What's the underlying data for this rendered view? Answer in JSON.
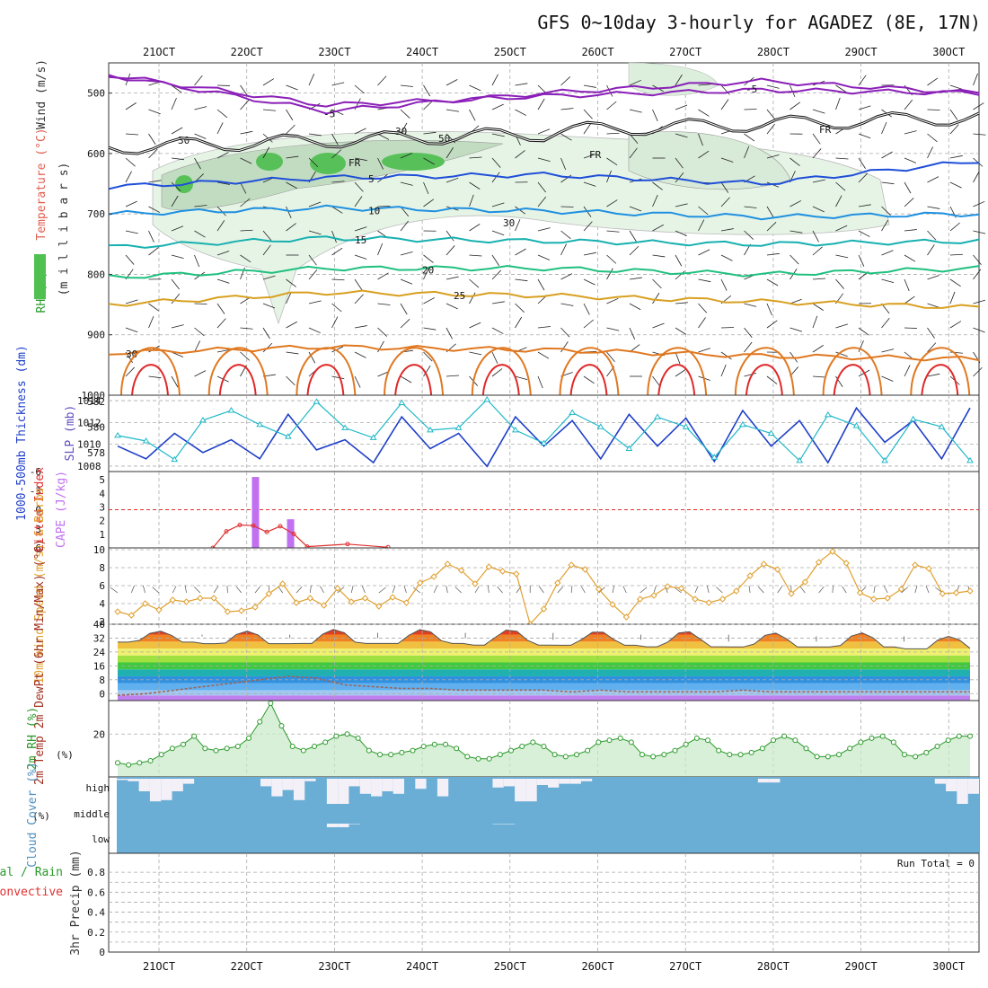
{
  "title": "GFS 0~10day 3-hourly for AGADEZ (8E, 17N)",
  "date_axis": {
    "labels": [
      "21OCT",
      "22OCT",
      "23OCT",
      "24OCT",
      "25OCT",
      "26OCT",
      "27OCT",
      "28OCT",
      "29OCT",
      "30OCT"
    ]
  },
  "run_total_label": "Run Total = 0",
  "colors": {
    "grid": "#aaaaaa",
    "temp_purple": "#8a1fb8",
    "temp_blue": "#1f4fd8",
    "temp_lightblue": "#1f90e0",
    "temp_teal": "#17b0b0",
    "temp_green": "#20c080",
    "temp_gold": "#d8a020",
    "temp_orange": "#e07820",
    "temp_red": "#e02828",
    "rh_fill": "#c8e8c8",
    "thickness_line": "#1f3fc8",
    "slp_line": "#20b8c8",
    "cape_bar": "#c070f0",
    "lifted_index": "#e03030",
    "wind_speed": "#e0a030",
    "rh2m_line": "#2a9a2a",
    "cloud_fill": "#6aaed6",
    "cloud_clear": "#f4f0f8",
    "dewpoint": "#a06050"
  },
  "chart_data": [
    {
      "type": "line",
      "name": "upper-air",
      "ylabel_parts": [
        "Wind (m/s)",
        "Temperature (°C)",
        "RH (%)",
        "(m i l l i b a r s)"
      ],
      "y_ticks": [
        "500",
        "600",
        "700",
        "800",
        "900",
        "1000"
      ],
      "ylim": [
        1000,
        450
      ],
      "isotherms": [
        {
          "label": "-5",
          "levels_mb": [
            470,
            530,
            500,
            480,
            500
          ]
        },
        {
          "label": "-5",
          "levels_mb": [
            470,
            520,
            505,
            495,
            500
          ]
        },
        {
          "label": "5",
          "levels_mb": [
            655,
            640,
            635,
            650,
            612
          ]
        },
        {
          "label": "10",
          "levels_mb": [
            700,
            690,
            695,
            705,
            700
          ]
        },
        {
          "label": "15",
          "levels_mb": [
            755,
            740,
            745,
            750,
            745
          ]
        },
        {
          "label": "20",
          "levels_mb": [
            805,
            790,
            790,
            800,
            790
          ]
        },
        {
          "label": "25",
          "levels_mb": [
            850,
            830,
            835,
            845,
            855
          ]
        },
        {
          "label": "30",
          "levels_mb": [
            930,
            920,
            925,
            935,
            940
          ]
        }
      ],
      "freezing_label": "FR",
      "rh_contour_labels": [
        "30",
        "50",
        "30",
        "30"
      ]
    },
    {
      "type": "line",
      "name": "thickness-slp",
      "ylabel_left": "1000-500mb Thickness (dm)",
      "ylabel_right": "SLP (mb)",
      "left_ticks": [
        "582",
        "580",
        "578"
      ],
      "right_ticks": [
        "1014",
        "1012",
        "1010",
        "1008"
      ],
      "series": [
        {
          "name": "1000-500mb Thickness (dm)",
          "ylim": [
            576.5,
            582.5
          ],
          "values": [
            578.5,
            577.5,
            579.5,
            578,
            579,
            577.5,
            581,
            578.2,
            579,
            577.2,
            580.8,
            578.3,
            579.5,
            576.9,
            580.8,
            578.5,
            580.5,
            577.5,
            581,
            578.5,
            580.7,
            577.3,
            581.3,
            578.5,
            580.5,
            577.2,
            581.5,
            578.8,
            580.5,
            577.5,
            581.5
          ]
        },
        {
          "name": "SLP (mb)",
          "ylim": [
            1007.5,
            1014.5
          ],
          "values": [
            1010.8,
            1010.3,
            1008.6,
            1012.2,
            1013.1,
            1011.8,
            1010.7,
            1013.9,
            1011.5,
            1010.6,
            1013.8,
            1011.3,
            1011.5,
            1014.1,
            1011.3,
            1010.1,
            1012.9,
            1011.6,
            1009.6,
            1012.5,
            1011.6,
            1008.8,
            1011.8,
            1011,
            1008.5,
            1012.7,
            1011.7,
            1008.5,
            1012.3,
            1011.6,
            1008.5
          ]
        }
      ]
    },
    {
      "type": "bar",
      "name": "cape-lifted-index",
      "ylabel_left": "Lifted Index",
      "ylabel_right": "CAPE (J/kg)",
      "li_ticks": [
        "-6",
        "-3",
        "0",
        "3",
        "6"
      ],
      "cape_ticks": [
        "5",
        "4",
        "3",
        "2",
        "1"
      ],
      "cape_bars": [
        {
          "date_index": 1.1,
          "value": 5.2
        },
        {
          "date_index": 1.5,
          "value": 2.1
        }
      ],
      "lifted_index_values": [
        null,
        null,
        6.0,
        3.4,
        2.4,
        2.5,
        3.5,
        2.6,
        3.8,
        5.8,
        null,
        null,
        5.4,
        null,
        null,
        5.9
      ]
    },
    {
      "type": "line",
      "name": "wind-10m",
      "ylabel": "10m Wind Speed (m/s) & Barbs",
      "y_ticks": [
        "10",
        "8",
        "6",
        "4",
        "2"
      ],
      "ylim": [
        2,
        10
      ],
      "values": [
        3.1,
        2.7,
        4,
        3.3,
        4.4,
        4.2,
        4.6,
        4.6,
        3.1,
        3.2,
        3.6,
        5.1,
        6.2,
        4.1,
        4.6,
        3.8,
        5.7,
        4.2,
        4.6,
        3.7,
        4.7,
        4.1,
        6.3,
        7,
        8.4,
        7.7,
        6.2,
        8.1,
        7.6,
        7.3,
        1.7,
        3.4,
        6.3,
        8.3,
        7.8,
        5.6,
        3.9,
        2.5,
        4.5,
        4.9,
        5.9,
        5.7,
        4.5,
        4.1,
        4.5,
        5.4,
        7.1,
        8.4,
        7.8,
        5.1,
        6.4,
        8.6,
        9.8,
        8.5,
        5.2,
        4.5,
        4.6,
        5.6,
        8.3,
        7.9,
        5.1,
        5.2,
        5.4
      ]
    },
    {
      "type": "area",
      "name": "temp-2m",
      "ylabel": "2m Temp 2m DewPt (6hr Min/Max) (°C)",
      "y_ticks": [
        "40",
        "32",
        "24",
        "16",
        "8",
        "0"
      ],
      "ylim": [
        -4,
        40
      ],
      "temp_max_peaks": [
        36,
        36,
        37,
        37,
        37,
        36,
        36,
        35,
        35,
        33
      ],
      "temp_min_troughs": [
        29,
        28,
        28,
        28,
        27,
        27,
        26,
        26,
        26,
        25
      ],
      "dewpoint_values": [
        -1,
        0,
        2,
        4,
        6,
        8,
        10,
        9,
        5,
        4,
        3,
        3,
        2,
        2,
        2,
        2,
        1,
        2,
        1,
        1,
        1,
        1,
        2,
        1,
        1,
        1,
        1,
        1,
        1,
        1,
        1
      ]
    },
    {
      "type": "area",
      "name": "rh-2m",
      "ylabel": "2m RH (%)",
      "y_ticks": [
        "20"
      ],
      "ylim": [
        0,
        35
      ],
      "values": [
        6,
        5,
        6,
        7,
        10,
        13,
        15,
        19,
        13,
        12,
        13,
        14,
        18,
        26,
        35,
        24,
        14,
        12,
        14,
        16,
        19,
        20,
        18,
        12,
        10,
        10,
        11,
        12,
        14,
        15,
        15,
        13,
        9,
        8,
        8,
        10,
        12,
        14,
        16,
        14,
        10,
        9,
        10,
        12,
        16,
        17,
        18,
        16,
        10,
        9,
        10,
        12,
        15,
        18,
        17,
        12,
        10,
        10,
        11,
        13,
        17,
        19,
        17,
        13,
        9,
        9,
        10,
        13,
        16,
        18,
        19,
        16,
        10,
        9,
        11,
        14,
        17,
        19,
        19
      ]
    },
    {
      "type": "bar",
      "name": "cloud-cover",
      "ylabel": "Cloud Cover (%)",
      "levels": [
        "high",
        "middle",
        "low"
      ],
      "high_clear_fraction": [
        0.05,
        0.1,
        0.5,
        0.9,
        0.85,
        0.5,
        0.2,
        0,
        0,
        0,
        0,
        0,
        0,
        0.3,
        0.7,
        0.45,
        0.85,
        0.1,
        0,
        1,
        1,
        0.3,
        0.6,
        0.7,
        0.5,
        0.6,
        0,
        0.4,
        0,
        0.7,
        0,
        0,
        0,
        0,
        0.35,
        0.3,
        0.9,
        0.9,
        0.25,
        0.35,
        0.2,
        0.2,
        0.1,
        0,
        0,
        0,
        0,
        0,
        0,
        0,
        0,
        0,
        0,
        0,
        0,
        0,
        0,
        0,
        0.15,
        0.15,
        0,
        0,
        0,
        0,
        0,
        0,
        0,
        0,
        0,
        0,
        0,
        0,
        0,
        0,
        0.2,
        0.5,
        1,
        0.6
      ],
      "middle_clear_fraction": [
        0,
        0,
        0,
        0,
        0,
        0,
        0,
        0,
        0,
        0,
        0,
        0,
        0,
        0,
        0,
        0,
        0,
        0,
        0,
        0.8,
        0.8,
        0.1,
        0,
        0,
        0,
        0,
        0,
        0,
        0,
        0,
        0,
        0,
        0,
        0,
        0.1,
        0.1
      ]
    },
    {
      "type": "bar",
      "name": "precip-3hr",
      "ylabel_main": "3hr Precip (mm)",
      "ylabel_left_1": "Total / Rain",
      "ylabel_left_2": "Convective",
      "y_ticks": [
        "0.8",
        "0.6",
        "0.4",
        "0.2",
        "0"
      ],
      "ylim": [
        0,
        0.9
      ],
      "values": []
    }
  ]
}
